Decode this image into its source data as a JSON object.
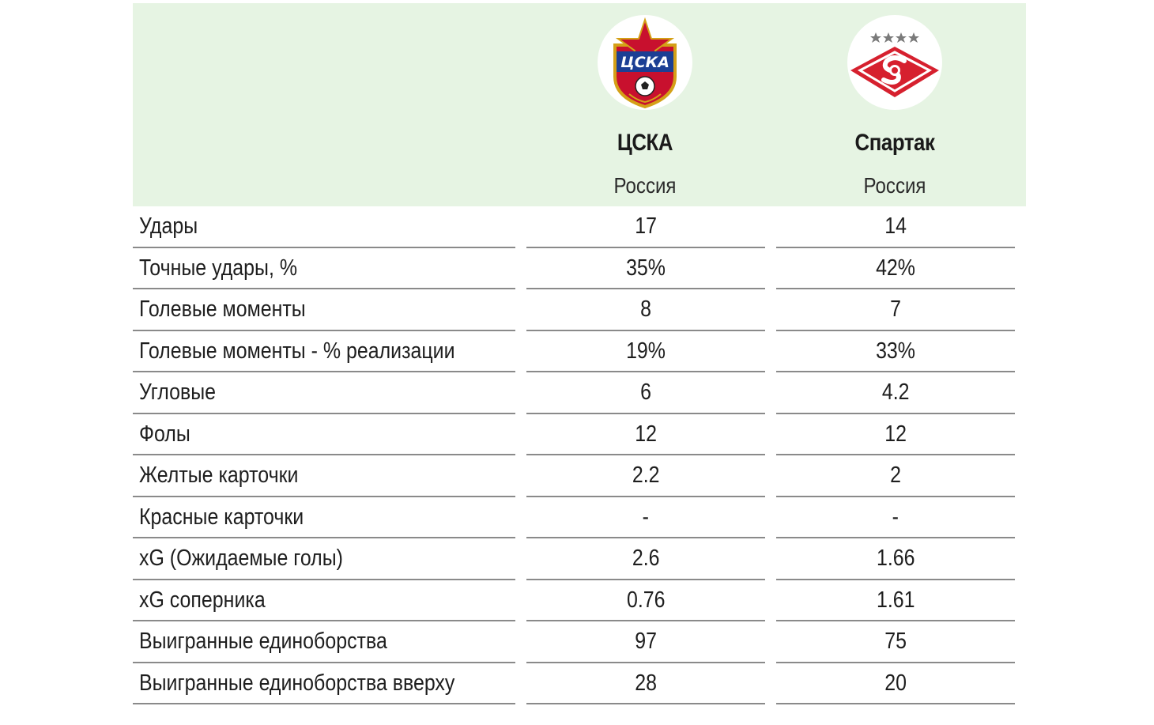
{
  "teams": {
    "home": {
      "name": "ЦСКА",
      "country": "Россия",
      "logo_icon": "cska-crest-icon"
    },
    "away": {
      "name": "Спартак",
      "country": "Россия",
      "logo_icon": "spartak-crest-icon"
    }
  },
  "colors": {
    "header_bg": "#e6f4e3",
    "row_divider": "#8a8a8a",
    "cska_red": "#c8102e",
    "cska_blue": "#1c3f94",
    "cska_gold": "#d4a017",
    "spartak_red": "#d6202e"
  },
  "rows": [
    {
      "label": "Удары",
      "home": "17",
      "away": "14"
    },
    {
      "label": "Точные удары, %",
      "home": "35%",
      "away": "42%"
    },
    {
      "label": "Голевые моменты",
      "home": "8",
      "away": "7"
    },
    {
      "label": "Голевые моменты - % реализации",
      "home": "19%",
      "away": "33%"
    },
    {
      "label": "Угловые",
      "home": "6",
      "away": "4.2"
    },
    {
      "label": "Фолы",
      "home": "12",
      "away": "12"
    },
    {
      "label": "Желтые карточки",
      "home": "2.2",
      "away": "2"
    },
    {
      "label": "Красные карточки",
      "home": "-",
      "away": "-"
    },
    {
      "label": "xG (Ожидаемые голы)",
      "home": "2.6",
      "away": "1.66"
    },
    {
      "label": "xG соперника",
      "home": "0.76",
      "away": "1.61"
    },
    {
      "label": "Выигранные единоборства",
      "home": "97",
      "away": "75"
    },
    {
      "label": "Выигранные единоборства вверху",
      "home": "28",
      "away": "20"
    }
  ]
}
